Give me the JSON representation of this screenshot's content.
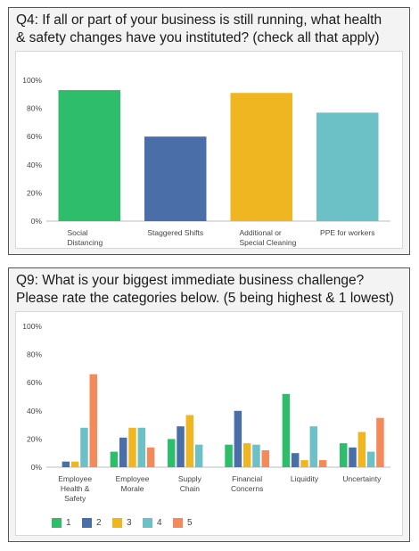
{
  "panels": [
    {
      "title_line1": "Q4: If all or part of your business is still running, what health",
      "title_line2": "& safety changes have you instituted? (check all that apply)"
    },
    {
      "title_line1": "Q9: What is your biggest immediate business challenge?",
      "title_line2": "Please rate the categories below. (5 being highest & 1 lowest)"
    }
  ],
  "chart_data": [
    {
      "type": "bar",
      "title": "",
      "xlabel": "",
      "ylabel": "",
      "ylim": [
        0,
        100
      ],
      "yticks": [
        "0%",
        "20%",
        "40%",
        "60%",
        "80%",
        "100%"
      ],
      "grid": false,
      "categories": [
        [
          "Social",
          "Distancing"
        ],
        [
          "Staggered Shifts"
        ],
        [
          "Additional or",
          "Special Cleaning"
        ],
        [
          "PPE for workers"
        ]
      ],
      "values": [
        93,
        60,
        91,
        77
      ],
      "colors": [
        "#2ebd6b",
        "#4a6fa8",
        "#f0b622",
        "#6cc1c6"
      ]
    },
    {
      "type": "bar",
      "title": "",
      "xlabel": "",
      "ylabel": "",
      "ylim": [
        0,
        100
      ],
      "yticks": [
        "0%",
        "20%",
        "40%",
        "60%",
        "80%",
        "100%"
      ],
      "grid": false,
      "legend_position": "bottom-left",
      "categories": [
        [
          "Employee",
          "Health &",
          "Safety"
        ],
        [
          "Employee",
          "Morale"
        ],
        [
          "Supply",
          "Chain"
        ],
        [
          "Financial",
          "Concerns"
        ],
        [
          "Liquidity"
        ],
        [
          "Uncertainty"
        ]
      ],
      "series": [
        {
          "name": "1",
          "color": "#2ebd6b",
          "values": [
            0,
            11,
            20,
            16,
            52,
            17
          ]
        },
        {
          "name": "2",
          "color": "#4a6fa8",
          "values": [
            4,
            21,
            29,
            40,
            10,
            14
          ]
        },
        {
          "name": "3",
          "color": "#f0b622",
          "values": [
            4,
            28,
            37,
            17,
            5,
            25
          ]
        },
        {
          "name": "4",
          "color": "#6cc1c6",
          "values": [
            28,
            28,
            16,
            16,
            29,
            11
          ]
        },
        {
          "name": "5",
          "color": "#f4895a",
          "values": [
            66,
            14,
            0,
            12,
            5,
            35
          ]
        }
      ]
    }
  ]
}
